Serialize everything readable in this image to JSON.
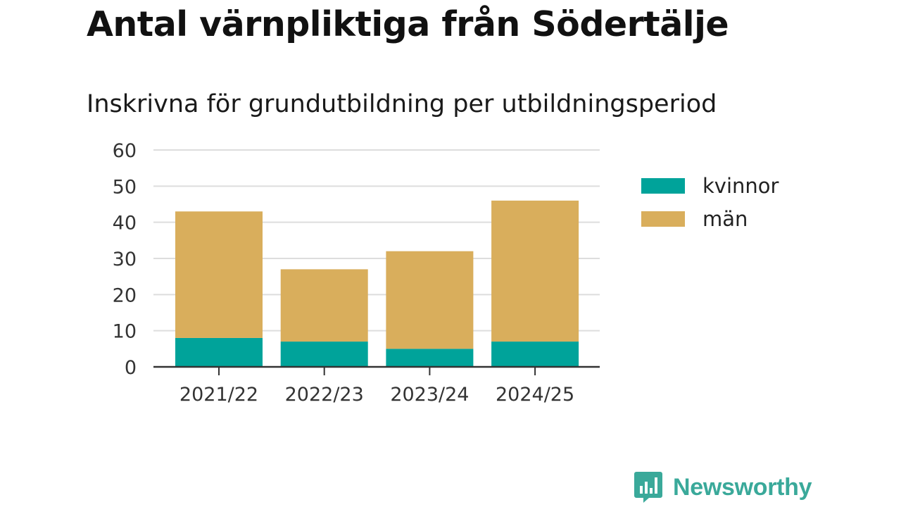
{
  "title": "Antal värnpliktiga från Södertälje",
  "subtitle": "Inskrivna för grundutbildning per utbildningsperiod",
  "brand": {
    "name": "Newsworthy",
    "icon": "newsworthy-logo-icon",
    "color": "#3aa99a"
  },
  "colors": {
    "kvinnor": "#00a39a",
    "man": "#d9ae5c",
    "grid": "#dddddd",
    "axis": "#333333"
  },
  "chart_data": {
    "type": "bar",
    "stacked": true,
    "categories": [
      "2021/22",
      "2022/23",
      "2023/24",
      "2024/25"
    ],
    "series": [
      {
        "name": "kvinnor",
        "values": [
          8,
          7,
          5,
          7
        ],
        "color": "#00a39a"
      },
      {
        "name": "män",
        "values": [
          35,
          20,
          27,
          39
        ],
        "color": "#d9ae5c"
      }
    ],
    "ylim": [
      0,
      60
    ],
    "yticks": [
      0,
      10,
      20,
      30,
      40,
      50,
      60
    ],
    "grid": true,
    "legend": "right"
  }
}
